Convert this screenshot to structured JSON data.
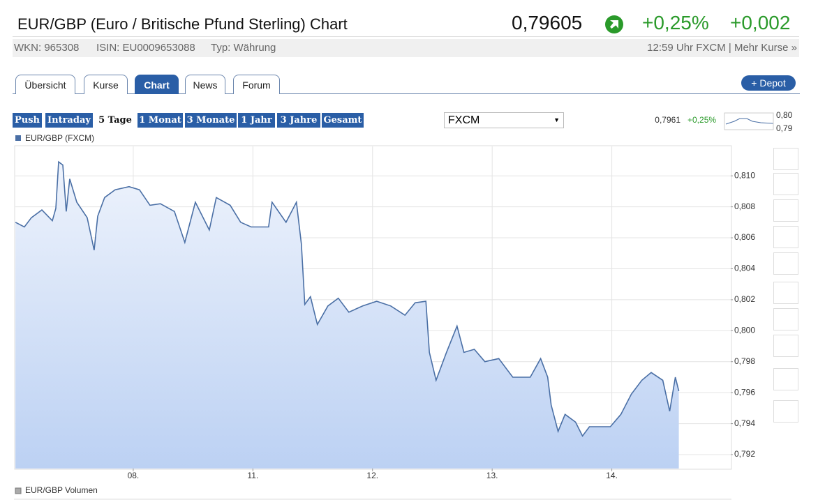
{
  "header": {
    "title": "EUR/GBP (Euro / Britische Pfund Sterling) Chart",
    "price": "0,79605",
    "change_pct": "+0,25%",
    "change_abs": "+0,002"
  },
  "info": {
    "wkn": "WKN: 965308",
    "isin": "ISIN: EU0009653088",
    "typ": "Typ: Währung",
    "time": "12:59 Uhr FXCM",
    "separator": "|",
    "more": "Mehr Kurse »"
  },
  "tabs": [
    "Übersicht",
    "Kurse",
    "Chart",
    "News",
    "Forum"
  ],
  "depot": "+ Depot",
  "periods": [
    "Push",
    "Intraday",
    "5 Tage",
    "1 Monat",
    "3 Monate",
    "1 Jahr",
    "3 Jahre",
    "Gesamt"
  ],
  "exchange": "FXCM",
  "mini": {
    "price": "0,7961",
    "change": "+0,25%",
    "high": "0,80",
    "low": "0,79"
  },
  "volume_legend": "EUR/GBP Volumen",
  "chart_data": {
    "type": "area",
    "x": [
      0.015,
      0.09,
      0.149,
      0.236,
      0.324,
      0.353,
      0.376,
      0.411,
      0.44,
      0.469,
      0.528,
      0.615,
      0.673,
      0.703,
      0.761,
      0.848,
      0.965,
      1.052,
      1.14,
      1.227,
      1.344,
      1.431,
      1.519,
      1.636,
      1.694,
      1.81,
      1.898,
      1.985,
      2.131,
      2.16,
      2.277,
      2.364,
      2.405,
      2.434,
      2.481,
      2.539,
      2.627,
      2.714,
      2.802,
      2.918,
      3.035,
      3.152,
      3.271,
      3.356,
      3.446,
      3.475,
      3.531,
      3.618,
      3.706,
      3.764,
      3.851,
      3.939,
      4.055,
      4.172,
      4.318,
      4.405,
      4.464,
      4.493,
      4.551,
      4.609,
      4.697,
      4.755,
      4.813,
      4.93,
      4.988,
      5.076,
      5.163,
      5.251,
      5.329,
      5.426,
      5.484,
      5.531,
      5.56
    ],
    "series": [
      {
        "name": "EUR/GBP (FXCM)",
        "color": "#4a6fa5",
        "values": [
          0.807,
          0.8067,
          0.8073,
          0.8078,
          0.8071,
          0.8079,
          0.8109,
          0.8107,
          0.8077,
          0.8098,
          0.8083,
          0.8073,
          0.8052,
          0.8074,
          0.8086,
          0.8091,
          0.8093,
          0.8091,
          0.8081,
          0.8082,
          0.8077,
          0.8057,
          0.8083,
          0.8065,
          0.8086,
          0.8081,
          0.807,
          0.8067,
          0.8067,
          0.8083,
          0.807,
          0.8083,
          0.8056,
          0.8017,
          0.8022,
          0.8004,
          0.8016,
          0.8021,
          0.8012,
          0.8016,
          0.8019,
          0.8016,
          0.801,
          0.8018,
          0.8019,
          0.7986,
          0.7968,
          0.7986,
          0.8003,
          0.7986,
          0.7988,
          0.798,
          0.7982,
          0.797,
          0.797,
          0.7982,
          0.797,
          0.7952,
          0.7935,
          0.7946,
          0.7941,
          0.7932,
          0.7938,
          0.7938,
          0.7938,
          0.7946,
          0.7959,
          0.7968,
          0.7973,
          0.7968,
          0.7948,
          0.797,
          0.7961
        ]
      }
    ],
    "xlim": [
      0,
      6
    ],
    "xticks": [
      {
        "value": 1,
        "label": "08."
      },
      {
        "value": 2,
        "label": "11."
      },
      {
        "value": 3,
        "label": "12."
      },
      {
        "value": 4,
        "label": "13."
      },
      {
        "value": 5,
        "label": "14."
      }
    ],
    "ylim": [
      0.7911,
      0.8119
    ],
    "yticks": [
      {
        "value": 0.792,
        "label": "0,792"
      },
      {
        "value": 0.794,
        "label": "0,794"
      },
      {
        "value": 0.796,
        "label": "0,796"
      },
      {
        "value": 0.798,
        "label": "0,798"
      },
      {
        "value": 0.8,
        "label": "0,800"
      },
      {
        "value": 0.802,
        "label": "0,802"
      },
      {
        "value": 0.804,
        "label": "0,804"
      },
      {
        "value": 0.806,
        "label": "0,806"
      },
      {
        "value": 0.808,
        "label": "0,808"
      },
      {
        "value": 0.81,
        "label": "0,810"
      }
    ],
    "grid": true
  }
}
